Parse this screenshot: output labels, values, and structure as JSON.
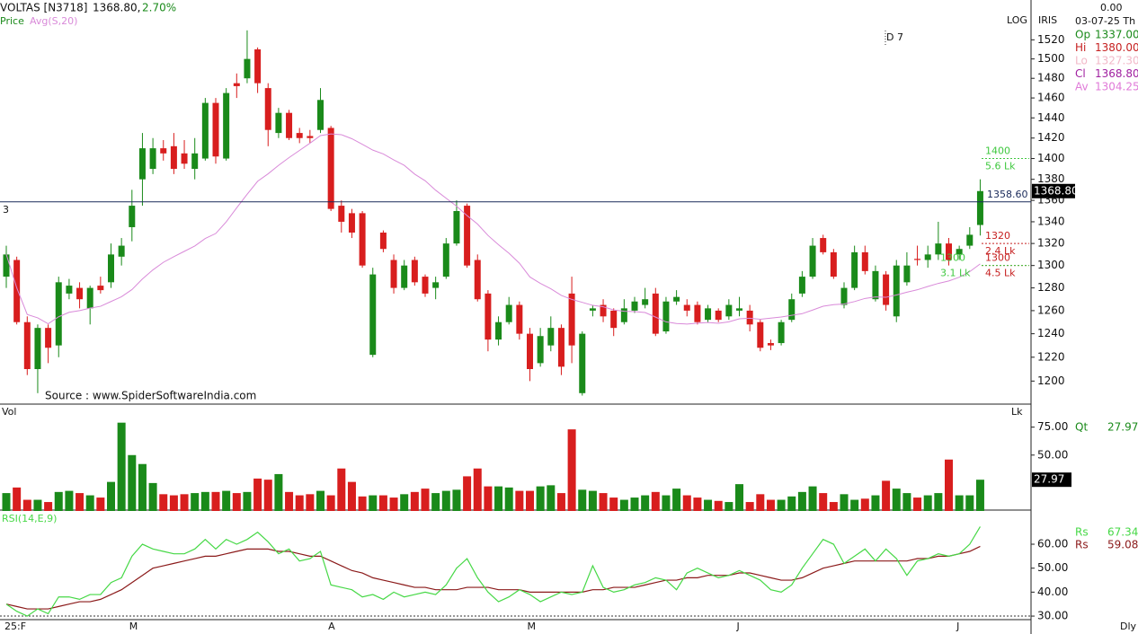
{
  "header": {
    "symbol": "VOLTAS [N3718]",
    "price": "1368.80,",
    "change": "2.70%",
    "price_label": "Price",
    "avg_label": "Avg(S,20)",
    "scale": "LOG",
    "source_name": "IRIS",
    "marker": "D 7",
    "source": "Source : www.SpiderSoftwareIndia.com",
    "vol_label": "Vol",
    "interval": "Dly"
  },
  "info_panel": {
    "top": "0.00",
    "date": "03-07-25 Th",
    "rows": [
      {
        "label": "Op",
        "value": "1337.00",
        "color": "#1a8a1a"
      },
      {
        "label": "Hi",
        "value": "1380.00",
        "color": "#c62020"
      },
      {
        "label": "Lo",
        "value": "1327.30",
        "color": "#f2b8c8"
      },
      {
        "label": "Cl",
        "value": "1368.80",
        "color": "#a020a0"
      },
      {
        "label": "Av",
        "value": "1304.25",
        "color": "#e07ad8"
      }
    ],
    "qty_label": "Qt"
  },
  "chart_data": [
    {
      "type": "candlestick",
      "log": true,
      "up_color": "#1a8a1a",
      "down_color": "#d81e1e",
      "avg_color": "#d98ad9",
      "avg_window": 20,
      "categories": [
        "25:F",
        null,
        null,
        null,
        null,
        null,
        null,
        null,
        null,
        null,
        null,
        null,
        "M",
        null,
        null,
        null,
        null,
        null,
        null,
        null,
        null,
        null,
        null,
        null,
        null,
        null,
        null,
        null,
        null,
        null,
        null,
        "A",
        null,
        null,
        null,
        null,
        null,
        null,
        null,
        null,
        null,
        null,
        null,
        null,
        null,
        null,
        null,
        null,
        null,
        null,
        "M",
        null,
        null,
        null,
        null,
        null,
        null,
        null,
        null,
        null,
        null,
        null,
        null,
        null,
        null,
        null,
        null,
        null,
        null,
        null,
        "J",
        null,
        null,
        null,
        null,
        null,
        null,
        null,
        null,
        null,
        null,
        null,
        null,
        null,
        null,
        null,
        null,
        null,
        null,
        null,
        null,
        "J",
        null,
        null
      ],
      "ohlc": [
        [
          1290,
          1318,
          1280,
          1310
        ],
        [
          1305,
          1308,
          1248,
          1250
        ],
        [
          1250,
          1255,
          1205,
          1210
        ],
        [
          1210,
          1248,
          1190,
          1245
        ],
        [
          1245,
          1248,
          1215,
          1228
        ],
        [
          1230,
          1290,
          1220,
          1285
        ],
        [
          1275,
          1288,
          1270,
          1282
        ],
        [
          1280,
          1285,
          1262,
          1270
        ],
        [
          1262,
          1282,
          1248,
          1280
        ],
        [
          1282,
          1290,
          1275,
          1278
        ],
        [
          1285,
          1320,
          1280,
          1310
        ],
        [
          1308,
          1325,
          1300,
          1318
        ],
        [
          1335,
          1370,
          1322,
          1355
        ],
        [
          1380,
          1425,
          1355,
          1410
        ],
        [
          1390,
          1420,
          1385,
          1410
        ],
        [
          1410,
          1418,
          1398,
          1405
        ],
        [
          1412,
          1425,
          1385,
          1390
        ],
        [
          1405,
          1418,
          1390,
          1395
        ],
        [
          1390,
          1420,
          1380,
          1405
        ],
        [
          1400,
          1460,
          1398,
          1455
        ],
        [
          1455,
          1460,
          1395,
          1402
        ],
        [
          1400,
          1470,
          1398,
          1465
        ],
        [
          1475,
          1485,
          1460,
          1472
        ],
        [
          1480,
          1530,
          1475,
          1500
        ],
        [
          1510,
          1512,
          1465,
          1475
        ],
        [
          1470,
          1475,
          1412,
          1428
        ],
        [
          1425,
          1450,
          1420,
          1445
        ],
        [
          1445,
          1448,
          1418,
          1420
        ],
        [
          1425,
          1430,
          1415,
          1420
        ],
        [
          1422,
          1428,
          1415,
          1420
        ],
        [
          1428,
          1470,
          1425,
          1458
        ],
        [
          1430,
          1432,
          1350,
          1352
        ],
        [
          1355,
          1360,
          1330,
          1340
        ],
        [
          1348,
          1352,
          1325,
          1330
        ],
        [
          1348,
          1350,
          1298,
          1300
        ],
        [
          1222,
          1298,
          1220,
          1292
        ],
        [
          1330,
          1332,
          1312,
          1315
        ],
        [
          1305,
          1310,
          1275,
          1280
        ],
        [
          1280,
          1305,
          1278,
          1300
        ],
        [
          1305,
          1308,
          1282,
          1285
        ],
        [
          1290,
          1292,
          1272,
          1275
        ],
        [
          1280,
          1290,
          1270,
          1285
        ],
        [
          1290,
          1325,
          1288,
          1320
        ],
        [
          1320,
          1360,
          1318,
          1350
        ],
        [
          1355,
          1357,
          1298,
          1300
        ],
        [
          1305,
          1310,
          1268,
          1270
        ],
        [
          1275,
          1278,
          1225,
          1235
        ],
        [
          1235,
          1255,
          1230,
          1250
        ],
        [
          1250,
          1272,
          1248,
          1265
        ],
        [
          1265,
          1268,
          1235,
          1240
        ],
        [
          1240,
          1245,
          1200,
          1210
        ],
        [
          1215,
          1245,
          1212,
          1238
        ],
        [
          1230,
          1255,
          1225,
          1245
        ],
        [
          1245,
          1248,
          1205,
          1212
        ],
        [
          1275,
          1290,
          1215,
          1230
        ],
        [
          1190,
          1242,
          1188,
          1240
        ],
        [
          1260,
          1265,
          1255,
          1262
        ],
        [
          1265,
          1270,
          1250,
          1255
        ],
        [
          1260,
          1262,
          1238,
          1245
        ],
        [
          1250,
          1270,
          1248,
          1262
        ],
        [
          1260,
          1272,
          1258,
          1268
        ],
        [
          1265,
          1280,
          1262,
          1270
        ],
        [
          1275,
          1280,
          1238,
          1240
        ],
        [
          1242,
          1272,
          1240,
          1268
        ],
        [
          1268,
          1278,
          1265,
          1272
        ],
        [
          1265,
          1270,
          1255,
          1260
        ],
        [
          1265,
          1268,
          1248,
          1250
        ],
        [
          1252,
          1265,
          1250,
          1262
        ],
        [
          1260,
          1262,
          1250,
          1252
        ],
        [
          1255,
          1270,
          1252,
          1265
        ],
        [
          1260,
          1272,
          1255,
          1262
        ],
        [
          1260,
          1265,
          1242,
          1248
        ],
        [
          1250,
          1252,
          1225,
          1228
        ],
        [
          1232,
          1235,
          1226,
          1230
        ],
        [
          1232,
          1252,
          1230,
          1250
        ],
        [
          1252,
          1275,
          1250,
          1270
        ],
        [
          1275,
          1295,
          1272,
          1290
        ],
        [
          1290,
          1325,
          1288,
          1318
        ],
        [
          1325,
          1328,
          1310,
          1312
        ],
        [
          1312,
          1315,
          1288,
          1290
        ],
        [
          1265,
          1285,
          1262,
          1280
        ],
        [
          1280,
          1318,
          1278,
          1312
        ],
        [
          1312,
          1318,
          1292,
          1295
        ],
        [
          1270,
          1300,
          1268,
          1295
        ],
        [
          1292,
          1295,
          1260,
          1265
        ],
        [
          1255,
          1305,
          1250,
          1300
        ],
        [
          1285,
          1312,
          1282,
          1300
        ],
        [
          1306,
          1318,
          1300,
          1305
        ],
        [
          1305,
          1318,
          1298,
          1310
        ],
        [
          1310,
          1340,
          1305,
          1320
        ],
        [
          1320,
          1325,
          1300,
          1305
        ],
        [
          1310,
          1318,
          1305,
          1315
        ],
        [
          1318,
          1335,
          1315,
          1328
        ],
        [
          1337,
          1380,
          1327.3,
          1368.8
        ]
      ],
      "ylim": [
        1181,
        1548
      ],
      "yticks": [
        1200,
        1220,
        1240,
        1260,
        1280,
        1300,
        1320,
        1340,
        1360,
        1380,
        1400,
        1420,
        1440,
        1460,
        1480,
        1500,
        1520
      ],
      "last_label": "1368.80",
      "reference": {
        "value": 1358.6,
        "label": "1358.60",
        "left_label": "3",
        "color": "#1a2a5a"
      },
      "levels": [
        {
          "value": 1400,
          "label": "1400",
          "volume": "5.6 Lk",
          "color": "#3fc83f"
        },
        {
          "value": 1320,
          "label": "1320",
          "volume": "2.4 Lk",
          "color": "#c62020"
        },
        {
          "value": 1300,
          "label": "1300",
          "volume": "4.5 Lk",
          "color": "#c62020"
        },
        {
          "value": 1300,
          "label": "1300",
          "volume": "3.1 Lk",
          "color": "#3fc83f"
        }
      ]
    },
    {
      "type": "bar",
      "unit": "Lk",
      "values": [
        16,
        21,
        10,
        10,
        8,
        17,
        18,
        16,
        14,
        12,
        26,
        79,
        50,
        42,
        25,
        15,
        14,
        15,
        16,
        17,
        17,
        18,
        16,
        17,
        29,
        28,
        33,
        17,
        14,
        15,
        18,
        14,
        38,
        26,
        13,
        14,
        14,
        12,
        15,
        17,
        20,
        16,
        18,
        19,
        31,
        38,
        22,
        22,
        21,
        18,
        18,
        22,
        23,
        16,
        73,
        19,
        18,
        16,
        12,
        10,
        12,
        14,
        17,
        14,
        20,
        14,
        12,
        10,
        9,
        8,
        24,
        8,
        15,
        10,
        10,
        13,
        17,
        22,
        16,
        8,
        15,
        10,
        11,
        14,
        27,
        20,
        16,
        12,
        14,
        16,
        46,
        14,
        14,
        27.97
      ],
      "ylim": [
        0,
        94
      ],
      "yticks": [
        {
          "value": 50,
          "label": "50.00"
        },
        {
          "value": 75,
          "label": "75.00"
        }
      ]
    },
    {
      "type": "line",
      "title": "RSI(14,E,9)",
      "reference": 30,
      "series": [
        {
          "name": "Rs",
          "color": "#46d846",
          "values": [
            35,
            32,
            30,
            33,
            31,
            38,
            38,
            37,
            39,
            39,
            44,
            46,
            55,
            60,
            58,
            57,
            56,
            56,
            58,
            62,
            58,
            62,
            60,
            62,
            65,
            61,
            56,
            58,
            53,
            54,
            57,
            43,
            42,
            41,
            38,
            39,
            37,
            40,
            38,
            39,
            40,
            39,
            43,
            50,
            54,
            46,
            40,
            36,
            38,
            41,
            39,
            36,
            38,
            40,
            39,
            40,
            51,
            42,
            40,
            41,
            43,
            44,
            46,
            45,
            41,
            48,
            50,
            48,
            46,
            47,
            49,
            47,
            45,
            41,
            40,
            43,
            50,
            56,
            62,
            60,
            52,
            55,
            58,
            53,
            58,
            54,
            47,
            53,
            54,
            56,
            55,
            56,
            60,
            67.34
          ]
        },
        {
          "name": "Rs",
          "color": "#8b1a1a",
          "values": [
            35,
            34,
            33,
            33,
            33,
            34,
            35,
            36,
            36,
            37,
            39,
            41,
            44,
            47,
            50,
            51,
            52,
            53,
            54,
            55,
            55,
            56,
            57,
            58,
            58,
            58,
            57,
            57,
            56,
            55,
            55,
            53,
            51,
            49,
            48,
            46,
            45,
            44,
            43,
            42,
            42,
            41,
            41,
            41,
            42,
            42,
            42,
            41,
            41,
            41,
            40,
            40,
            40,
            40,
            40,
            40,
            41,
            41,
            42,
            42,
            42,
            43,
            44,
            45,
            45,
            46,
            46,
            47,
            47,
            47,
            48,
            48,
            47,
            46,
            45,
            45,
            46,
            48,
            50,
            51,
            52,
            53,
            53,
            53,
            53,
            53,
            53,
            54,
            54,
            55,
            55,
            56,
            57,
            59.08
          ]
        }
      ],
      "ylim": [
        22.9,
        73.5
      ],
      "yticks": [
        {
          "value": 30,
          "label": "30.00"
        },
        {
          "value": 40,
          "label": "40.00"
        },
        {
          "value": 50,
          "label": "50.00"
        },
        {
          "value": 60,
          "label": "60.00"
        }
      ]
    }
  ]
}
